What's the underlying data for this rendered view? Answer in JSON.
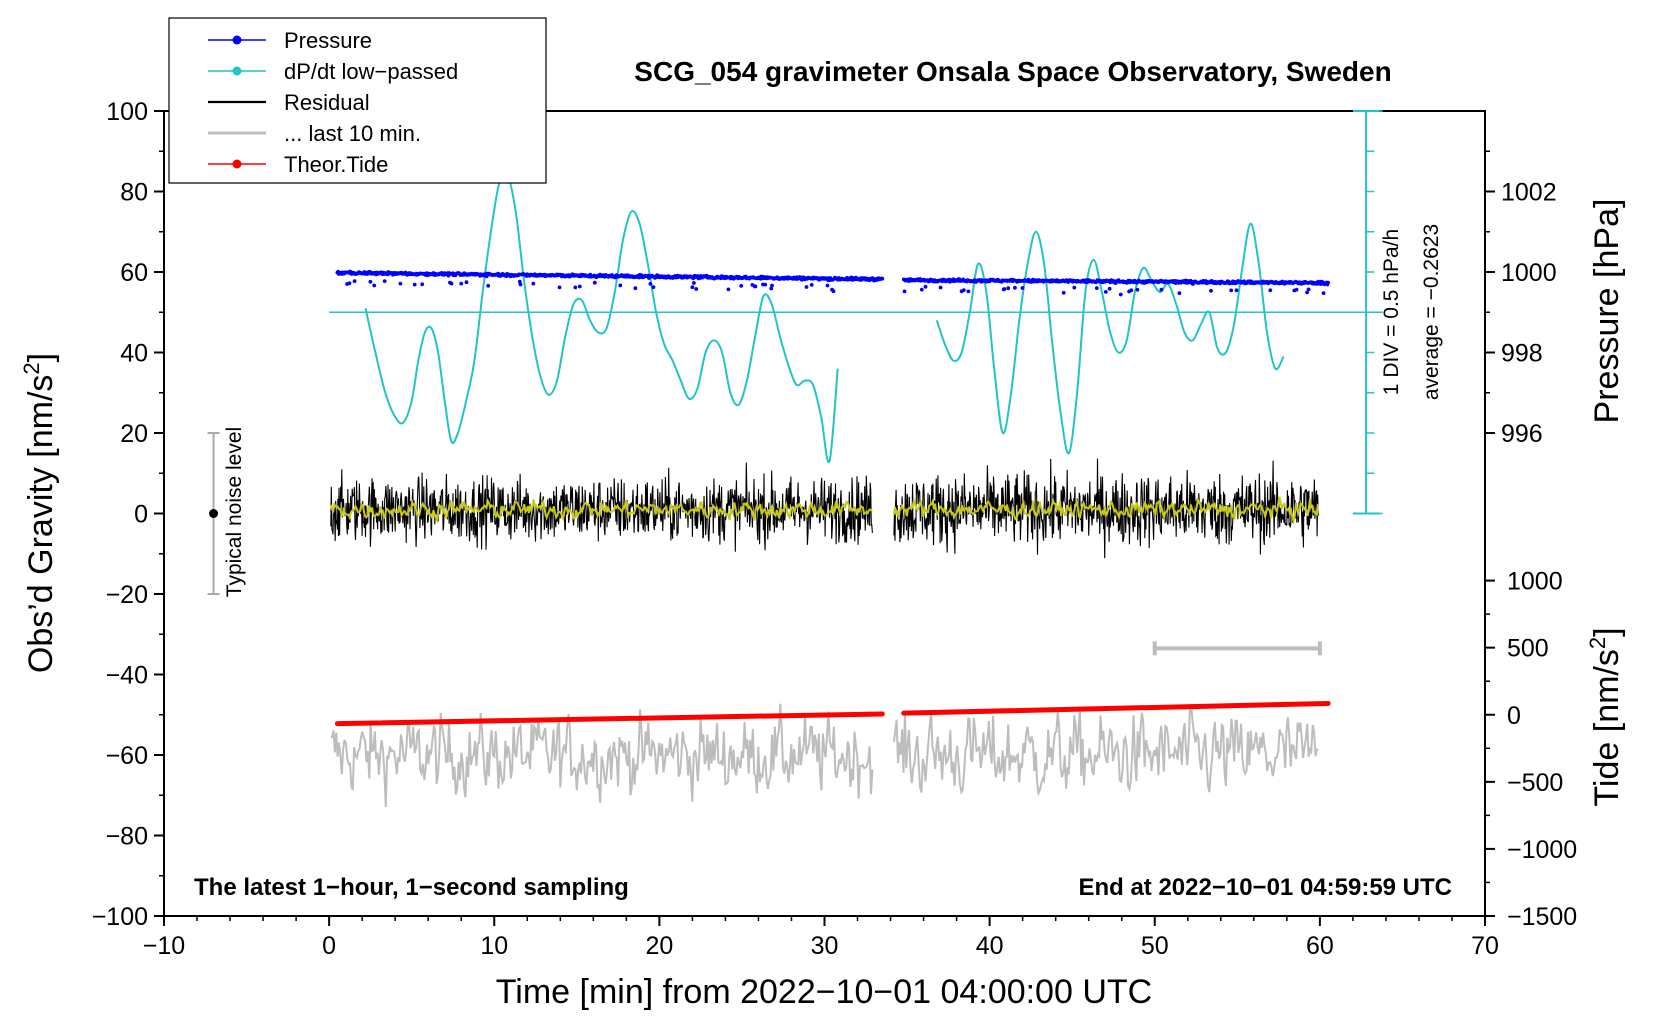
{
  "chart_data": {
    "type": "line",
    "title": "SCG_054 gravimeter Onsala Space Observatory, Sweden",
    "xlabel": "Time [min] from 2022−10−01 04:00:00 UTC",
    "ylabel_left": "Obs’d Gravity [nm/s²]",
    "ylabel_left_main": "Obs’d Gravity [nm/s",
    "ylabel_left_sup": "2",
    "ylabel_left_end": "]",
    "ylabel_right_pressure": "Pressure [hPa]",
    "ylabel_right_tide_main": "Tide [nm/s",
    "ylabel_right_tide_sup": "2",
    "ylabel_right_tide_end": "]",
    "xlim": [
      -10,
      70
    ],
    "ylim": [
      -100,
      100
    ],
    "x_ticks": [
      -10,
      0,
      10,
      20,
      30,
      40,
      50,
      60,
      70
    ],
    "x_tick_labels": [
      "−10",
      "0",
      "10",
      "20",
      "30",
      "40",
      "50",
      "60",
      "70"
    ],
    "y_ticks": [
      -100,
      -80,
      -60,
      -40,
      -20,
      0,
      20,
      40,
      60,
      80,
      100
    ],
    "y_tick_labels": [
      "−100",
      "−80",
      "−60",
      "−40",
      "−20",
      "0",
      "20",
      "40",
      "60",
      "80",
      "100"
    ],
    "pressure_axis": {
      "ticks": [
        996,
        998,
        1000,
        1002
      ],
      "tick_labels": [
        "996",
        "998",
        "1000",
        "1002"
      ],
      "gravity_equiv": [
        20,
        40,
        60,
        80
      ]
    },
    "tide_axis": {
      "ticks": [
        -1500,
        -1000,
        -500,
        0,
        500,
        1000
      ],
      "tick_labels": [
        "−1500",
        "−1000",
        "−500",
        "0",
        "500",
        "1000"
      ],
      "gravity_equiv": [
        -100,
        -83.33,
        -66.67,
        -50,
        -33.33,
        -16.67
      ]
    },
    "dpdt_scale": {
      "label": "1 DIV = 0.5 hPa/h",
      "average_label": "average = −0.2623",
      "baseline_gravity": 50,
      "scale_top": 100,
      "scale_bottom": 0,
      "scale_x": 62.8
    },
    "noise_bar": {
      "label": "Typical noise level",
      "x": -7,
      "center": 0,
      "low": -20,
      "high": 20
    },
    "last10_bar": {
      "x_start": 50,
      "x_end": 60,
      "y": -33.5
    },
    "series": [
      {
        "name": "Pressure",
        "color": "#0000ff",
        "kind": "dots",
        "segments": [
          {
            "x": [
              0.5,
              33.5
            ],
            "y": [
              59.8,
              58.2
            ]
          },
          {
            "x": [
              34.8,
              60.5
            ],
            "y": [
              58.0,
              57.3
            ]
          }
        ]
      },
      {
        "name": "dP/dt low−passed",
        "color": "#22c4c4",
        "kind": "line",
        "segments": [
          {
            "x": [
              2.2,
              2.8,
              3.4,
              4.0,
              4.5,
              5.0,
              5.4,
              5.8,
              6.2,
              6.6,
              7.0,
              7.4,
              7.8,
              8.3,
              8.8,
              9.3,
              9.8,
              10.3,
              10.8,
              11.3,
              11.8,
              12.3,
              12.8,
              13.3,
              13.8,
              14.3,
              14.8,
              15.3,
              15.8,
              16.3,
              16.8,
              17.3,
              17.8,
              18.3,
              18.8,
              19.3,
              19.8,
              20.3,
              20.8,
              21.3,
              21.8,
              22.3,
              22.8,
              23.3,
              23.8,
              24.3,
              24.8,
              25.3,
              25.8,
              26.3,
              26.8,
              27.3,
              27.8,
              28.3,
              28.8,
              29.3,
              29.8,
              30.3,
              30.8
            ],
            "y": [
              51,
              40,
              30,
              24,
              22.6,
              28,
              38,
              45,
              46,
              40,
              28,
              18,
              20,
              28,
              38,
              55,
              70,
              82,
              84,
              75,
              58,
              44,
              34,
              29.5,
              33,
              44,
              52,
              53,
              48,
              45,
              46,
              55,
              68,
              75,
              72,
              62,
              50,
              42,
              38,
              33,
              28.5,
              31,
              40,
              43,
              40,
              30,
              27,
              33,
              44,
              54,
              52,
              44,
              37,
              32,
              33,
              32,
              24,
              13,
              36
            ]
          },
          {
            "x": [
              36.8,
              37.3,
              37.8,
              38.3,
              38.8,
              39.3,
              39.8,
              40.3,
              40.8,
              41.3,
              41.8,
              42.3,
              42.8,
              43.3,
              43.8,
              44.3,
              44.8,
              45.3,
              45.8,
              46.3,
              46.8,
              47.3,
              47.8,
              48.3,
              48.8,
              49.3,
              49.8,
              50.3,
              50.8,
              51.3,
              51.8,
              52.3,
              52.8,
              53.3,
              53.8,
              54.3,
              54.8,
              55.3,
              55.8,
              56.3,
              56.8,
              57.3,
              57.8
            ],
            "y": [
              48,
              42,
              38,
              40,
              50,
              62,
              55,
              35,
              20,
              30,
              48,
              62,
              70,
              62,
              42,
              25,
              15,
              30,
              55,
              63,
              55,
              45,
              40,
              43,
              55,
              61,
              58,
              55,
              57,
              52,
              45,
              43,
              47,
              50,
              41,
              40,
              47,
              61,
              72,
              62,
              45,
              36,
              39
            ]
          }
        ]
      },
      {
        "name": "Residual",
        "color": "#000000",
        "kind": "noise",
        "segments": [
          {
            "x": [
              0.1,
              32.9
            ],
            "y_center": 1,
            "amplitude": 25
          },
          {
            "x": [
              34.2,
              59.9
            ],
            "y_center": 1,
            "amplitude": 28
          }
        ]
      },
      {
        "name": "... last 10 min.",
        "color": "#bdbdbd",
        "kind": "noise-offset",
        "segments": [
          {
            "x": [
              0.1,
              32.9
            ],
            "y_center": -60,
            "amplitude": 30
          },
          {
            "x": [
              34.2,
              59.9
            ],
            "y_center": -60,
            "amplitude": 32
          }
        ]
      },
      {
        "name": "Theor.Tide",
        "color": "#ff0000",
        "kind": "thick-line",
        "segments": [
          {
            "x": [
              0.5,
              33.5
            ],
            "y": [
              -52.2,
              -49.8
            ]
          },
          {
            "x": [
              34.8,
              60.5
            ],
            "y": [
              -49.6,
              -47.2
            ]
          }
        ]
      },
      {
        "name": "Filtered residual",
        "color": "#c8c81a",
        "kind": "smooth",
        "segments": [
          {
            "x": [
              0.1,
              32.9
            ],
            "y_center": 1
          },
          {
            "x": [
              34.2,
              59.9
            ],
            "y_center": 1
          }
        ]
      }
    ],
    "legend": [
      {
        "label": "Pressure",
        "color": "#0000ff",
        "marker": true
      },
      {
        "label": "dP/dt low−passed",
        "color": "#22c4c4",
        "marker": true
      },
      {
        "label": "Residual",
        "color": "#000000",
        "marker": false
      },
      {
        "label": "... last 10 min.",
        "color": "#bdbdbd",
        "marker": false
      },
      {
        "label": "Theor.Tide",
        "color": "#ff0000",
        "marker": true
      }
    ],
    "annotations": {
      "bottom_left": "The latest 1−hour, 1−second sampling",
      "bottom_right": "End at 2022−10−01 04:59:59 UTC"
    }
  }
}
